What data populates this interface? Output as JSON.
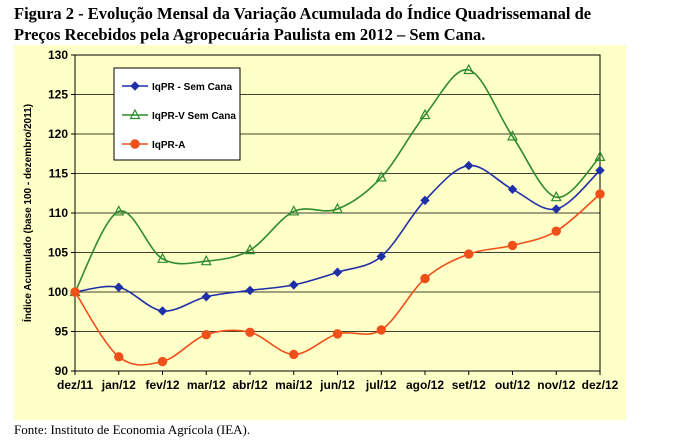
{
  "figure": {
    "title_line1": "Figura 2 - Evolução Mensal da Variação Acumulada do Índice Quadrissemanal de",
    "title_line2": "Preços Recebidos pela Agropecuária Paulista em 2012 – Sem Cana.",
    "source": "Fonte: Instituto de Economia Agrícola (IEA)."
  },
  "chart_data": {
    "type": "line",
    "categories": [
      "dez/11",
      "jan/12",
      "fev/12",
      "mar/12",
      "abr/12",
      "mai/12",
      "jun/12",
      "jul/12",
      "ago/12",
      "set/12",
      "out/12",
      "nov/12",
      "dez/12"
    ],
    "ylabel": "Índice Acumulado (base 100 - dezembro/2011)",
    "ylim": [
      90,
      130
    ],
    "yticks": [
      90,
      95,
      100,
      105,
      110,
      115,
      120,
      125,
      130
    ],
    "grid": true,
    "legend_position": "top-left",
    "series": [
      {
        "name": "IqPR - Sem Cana",
        "color": "#1f2fa8",
        "marker": "diamond",
        "values": [
          100.0,
          100.6,
          97.6,
          99.4,
          100.2,
          100.9,
          102.5,
          104.5,
          111.6,
          116.0,
          113.0,
          110.5,
          115.4
        ]
      },
      {
        "name": "IqPR-V Sem Cana",
        "color": "#2e8b2e",
        "marker": "triangle",
        "values": [
          100.0,
          110.2,
          104.2,
          103.9,
          105.3,
          110.2,
          110.5,
          114.5,
          122.4,
          128.1,
          119.7,
          112.0,
          117.1
        ]
      },
      {
        "name": "IqPR-A",
        "color": "#f04f1a",
        "marker": "circle",
        "values": [
          100.0,
          91.8,
          91.2,
          94.6,
          94.9,
          92.1,
          94.7,
          95.2,
          101.7,
          104.8,
          105.9,
          107.7,
          112.4
        ]
      }
    ]
  }
}
